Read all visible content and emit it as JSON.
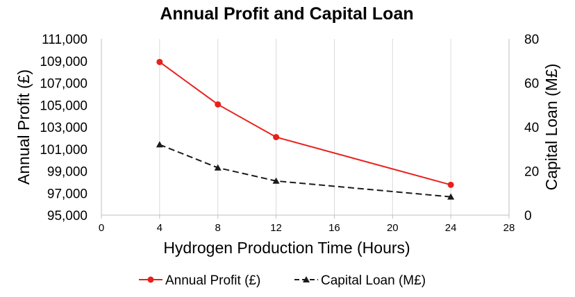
{
  "chart_data": {
    "type": "line",
    "title": "Annual Profit and Capital Loan",
    "xlabel": "Hydrogen Production Time (Hours)",
    "ylabel_left": "Annual Profit (£)",
    "ylabel_right": "Capital Loan (M£)",
    "xlim": [
      0,
      28
    ],
    "x_ticks": [
      "0",
      "4",
      "8",
      "12",
      "16",
      "20",
      "24",
      "28"
    ],
    "ylim_left": [
      95000,
      111000
    ],
    "y_ticks_left": [
      "95,000",
      "97,000",
      "99,000",
      "101,000",
      "103,000",
      "105,000",
      "107,000",
      "109,000",
      "111,000"
    ],
    "ylim_right": [
      0,
      80
    ],
    "y_ticks_right": [
      "0",
      "20",
      "40",
      "60",
      "80"
    ],
    "grid": "vertical",
    "legend_position": "bottom",
    "series": [
      {
        "name": "Annual Profit (£)",
        "axis": "left",
        "color": "#e8201c",
        "line_style": "solid",
        "marker": "circle",
        "x": [
          4,
          8,
          12,
          24
        ],
        "y": [
          108900,
          105050,
          102080,
          97750
        ]
      },
      {
        "name": "Capital Loan (M£)",
        "axis": "right",
        "color": "#1a1a1a",
        "line_style": "dashed",
        "marker": "triangle",
        "x": [
          4,
          8,
          12,
          24
        ],
        "y": [
          32,
          21.5,
          15.5,
          8.3
        ]
      }
    ]
  }
}
